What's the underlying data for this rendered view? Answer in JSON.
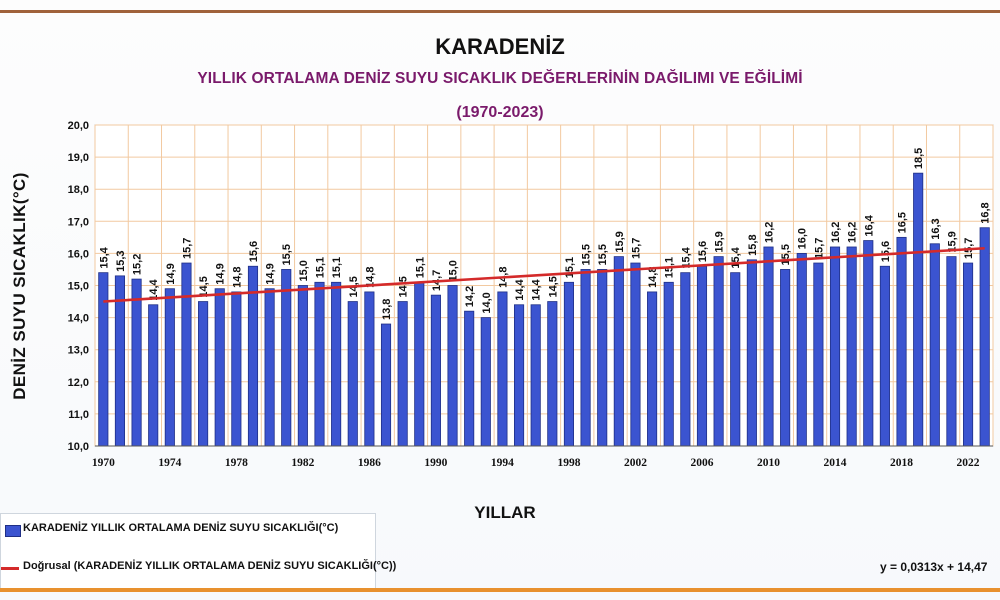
{
  "chart_data": {
    "type": "bar",
    "title": "KARADENİZ",
    "subtitle": "YILLIK ORTALAMA DENİZ SUYU SICAKLIK DEĞERLERİNİN  DAĞILIMI VE EĞİLİMİ",
    "period": "(1970-2023)",
    "xlabel": "YILLAR",
    "ylabel": "DENİZ SUYU  SICAKLIK(°C)",
    "ylim": [
      10.0,
      20.0
    ],
    "y_ticks": [
      "10,0",
      "11,0",
      "12,0",
      "13,0",
      "14,0",
      "15,0",
      "16,0",
      "17,0",
      "18,0",
      "19,0",
      "20,0"
    ],
    "x_ticks": [
      "1970",
      "1974",
      "1978",
      "1982",
      "1986",
      "1990",
      "1994",
      "1998",
      "2002",
      "2006",
      "2010",
      "2014",
      "2018",
      "2022"
    ],
    "categories": [
      1970,
      1971,
      1972,
      1973,
      1974,
      1975,
      1976,
      1977,
      1978,
      1979,
      1980,
      1981,
      1982,
      1983,
      1984,
      1985,
      1986,
      1987,
      1988,
      1989,
      1990,
      1991,
      1992,
      1993,
      1994,
      1995,
      1996,
      1997,
      1998,
      1999,
      2000,
      2001,
      2002,
      2003,
      2004,
      2005,
      2006,
      2007,
      2008,
      2009,
      2010,
      2011,
      2012,
      2013,
      2014,
      2015,
      2016,
      2017,
      2018,
      2019,
      2020,
      2021,
      2022,
      2023
    ],
    "values": [
      15.4,
      15.3,
      15.2,
      14.4,
      14.9,
      15.7,
      14.5,
      14.9,
      14.8,
      15.6,
      14.9,
      15.5,
      15.0,
      15.1,
      15.1,
      14.5,
      14.8,
      13.8,
      14.5,
      15.1,
      14.7,
      15.0,
      14.2,
      14.0,
      14.8,
      14.4,
      14.4,
      14.5,
      15.1,
      15.5,
      15.5,
      15.9,
      15.7,
      14.8,
      15.1,
      15.4,
      15.6,
      15.9,
      15.4,
      15.8,
      16.2,
      15.5,
      16.0,
      15.7,
      16.2,
      16.2,
      16.4,
      15.6,
      16.5,
      18.5,
      16.3,
      15.9,
      15.7,
      16.8
    ],
    "value_labels": [
      "15,4",
      "15,3",
      "15,2",
      "14,4",
      "14,9",
      "15,7",
      "14,5",
      "14,9",
      "14,8",
      "15,6",
      "14,9",
      "15,5",
      "15,0",
      "15,1",
      "15,1",
      "14,5",
      "14,8",
      "13,8",
      "14,5",
      "15,1",
      "14,7",
      "15,0",
      "14,2",
      "14,0",
      "14,8",
      "14,4",
      "14,4",
      "14,5",
      "15,1",
      "15,5",
      "15,5",
      "15,9",
      "15,7",
      "14,8",
      "15,1",
      "15,4",
      "15,6",
      "15,9",
      "15,4",
      "15,8",
      "16,2",
      "15,5",
      "16,0",
      "15,7",
      "16,2",
      "16,2",
      "16,4",
      "15,6",
      "16,5",
      "18,5",
      "16,3",
      "15,9",
      "15,7",
      "16,8"
    ],
    "trendline": {
      "slope": 0.0313,
      "intercept": 14.47,
      "equation": "y = 0,0313x + 14,47"
    },
    "series": [
      {
        "name": "KARADENİZ YILLIK ORTALAMA DENİZ SUYU SICAKLIĞI(°C)",
        "kind": "bar",
        "color": "#3b54d0"
      },
      {
        "name": "Doğrusal (KARADENİZ YILLIK ORTALAMA DENİZ SUYU SICAKLIĞI(°C))",
        "kind": "trend",
        "color": "#d42a2a"
      }
    ],
    "grid": true,
    "legend_position": "bottom-left",
    "colors": {
      "bar": "#3b54d0",
      "bar_edge": "#1f2f86",
      "trend": "#d42a2a",
      "grid": "#f2c9a0",
      "title_accent": "#7a1a6b"
    }
  }
}
